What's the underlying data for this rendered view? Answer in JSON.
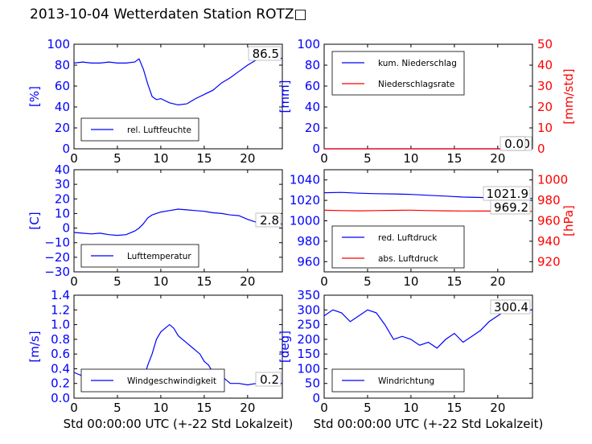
{
  "title": "2013-10-04 Wetterdaten Station ROTZ□",
  "colors": {
    "primary": "#0000ff",
    "secondary": "#ff0000",
    "axis": "#000000"
  },
  "chart_data": [
    {
      "type": "line",
      "ylabel": "[%]",
      "ylim": [
        0,
        100
      ],
      "yticks": [
        "0",
        "20",
        "40",
        "60",
        "80",
        "100"
      ],
      "xlim": [
        0,
        24
      ],
      "xticks": [
        "0",
        "5",
        "10",
        "15",
        "20"
      ],
      "xlabel": "",
      "value_label": "86.5",
      "legend": [
        "rel. Luftfeuchte"
      ],
      "series": [
        {
          "name": "rel. Luftfeuchte",
          "color": "#0000ff",
          "x": [
            0,
            1,
            2,
            3,
            4,
            5,
            6,
            7,
            7.5,
            8,
            8.5,
            9,
            9.5,
            10,
            11,
            12,
            13,
            14,
            15,
            16,
            17,
            18,
            19,
            20,
            21,
            22,
            23,
            24
          ],
          "y": [
            82,
            83,
            82,
            82,
            83,
            82,
            82,
            83,
            86,
            76,
            62,
            50,
            47,
            48,
            44,
            42,
            43,
            48,
            52,
            56,
            63,
            68,
            74,
            80,
            85,
            86,
            86.5,
            86.5
          ]
        }
      ]
    },
    {
      "type": "line",
      "ylabel": "[mm]",
      "ylabel2": "[mm/std]",
      "ylim": [
        0,
        100
      ],
      "ylim2": [
        0,
        50
      ],
      "yticks": [
        "0",
        "20",
        "40",
        "60",
        "80",
        "100"
      ],
      "yticks2": [
        "0",
        "10",
        "20",
        "30",
        "40",
        "50"
      ],
      "xlim": [
        0,
        24
      ],
      "xticks": [
        "0",
        "5",
        "10",
        "15",
        "20"
      ],
      "xlabel": "",
      "value_label": "0.0",
      "value_label2": "0.0",
      "legend": [
        "kum. Niederschlag",
        "Niederschlagsrate"
      ],
      "series": [
        {
          "name": "kum. Niederschlag",
          "color": "#0000ff",
          "axis": 1,
          "x": [
            0,
            24
          ],
          "y": [
            0,
            0
          ]
        },
        {
          "name": "Niederschlagsrate",
          "color": "#ff0000",
          "axis": 2,
          "x": [
            0,
            24
          ],
          "y": [
            0,
            0
          ]
        }
      ]
    },
    {
      "type": "line",
      "ylabel": "[C]",
      "ylim": [
        -30,
        40
      ],
      "yticks": [
        "−30",
        "−20",
        "−10",
        "0",
        "10",
        "20",
        "30",
        "40"
      ],
      "xlim": [
        0,
        24
      ],
      "xticks": [
        "0",
        "5",
        "10",
        "15",
        "20"
      ],
      "xlabel": "",
      "value_label": "2.8",
      "legend": [
        "Lufttemperatur"
      ],
      "series": [
        {
          "name": "Lufttemperatur",
          "color": "#0000ff",
          "x": [
            0,
            1,
            2,
            3,
            4,
            5,
            6,
            7,
            7.5,
            8,
            8.5,
            9,
            10,
            11,
            12,
            13,
            14,
            15,
            16,
            17,
            18,
            19,
            20,
            21,
            22,
            23,
            24
          ],
          "y": [
            -3,
            -3.5,
            -4,
            -3.5,
            -4.5,
            -5,
            -4.5,
            -2,
            0,
            3,
            7,
            9,
            11,
            12,
            13,
            12.5,
            12,
            11.5,
            10.5,
            10,
            9,
            8.5,
            6,
            4,
            3,
            2.8,
            2.8
          ]
        }
      ]
    },
    {
      "type": "line",
      "ylabel2": "[hPa]",
      "ylim": [
        950,
        1050
      ],
      "ylim2": [
        910,
        1010
      ],
      "yticks": [
        "960",
        "980",
        "1000",
        "1020",
        "1040"
      ],
      "yticks2": [
        "920",
        "940",
        "960",
        "980",
        "1000"
      ],
      "xlim": [
        0,
        24
      ],
      "xticks": [
        "0",
        "5",
        "10",
        "15",
        "20"
      ],
      "xlabel": "",
      "value_label": "1021.9",
      "value_label2": "969.2",
      "legend": [
        "red. Luftdruck",
        "abs. Luftdruck"
      ],
      "series": [
        {
          "name": "red. Luftdruck",
          "color": "#0000ff",
          "axis": 1,
          "x": [
            0,
            2,
            4,
            6,
            8,
            10,
            12,
            14,
            16,
            18,
            20,
            22,
            24
          ],
          "y": [
            1027.5,
            1027.8,
            1027.0,
            1026.5,
            1026.3,
            1025.8,
            1025.0,
            1024.2,
            1023.2,
            1022.8,
            1022.5,
            1022.2,
            1021.9
          ]
        },
        {
          "name": "abs. Luftdruck",
          "color": "#ff0000",
          "axis": 2,
          "x": [
            0,
            2,
            4,
            6,
            8,
            10,
            12,
            14,
            16,
            18,
            20,
            22,
            24
          ],
          "y": [
            970.3,
            970.0,
            969.8,
            970.0,
            970.2,
            970.4,
            970.0,
            969.8,
            969.6,
            969.5,
            969.5,
            969.3,
            969.2
          ]
        }
      ]
    },
    {
      "type": "line",
      "ylabel": "[m/s]",
      "ylim": [
        0,
        1.4
      ],
      "yticks": [
        "0.0",
        "0.2",
        "0.4",
        "0.6",
        "0.8",
        "1.0",
        "1.2",
        "1.4"
      ],
      "xlim": [
        0,
        24
      ],
      "xticks": [
        "0",
        "5",
        "10",
        "15",
        "20"
      ],
      "xlabel": "Std 00:00:00 UTC (+-22 Std Lokalzeit)",
      "value_label": "0.2",
      "legend": [
        "Windgeschwindigkeit"
      ],
      "series": [
        {
          "name": "Windgeschwindigkeit",
          "color": "#0000ff",
          "x": [
            0,
            1,
            2,
            3,
            4,
            5,
            6,
            7,
            8,
            8.5,
            9,
            9.5,
            10,
            10.5,
            11,
            11.5,
            12,
            12.5,
            13,
            13.5,
            14,
            14.5,
            15,
            15.5,
            16,
            17,
            18,
            19,
            20,
            21,
            22,
            23,
            24
          ],
          "y": [
            0.35,
            0.3,
            0.28,
            0.3,
            0.32,
            0.3,
            0.28,
            0.3,
            0.25,
            0.45,
            0.6,
            0.8,
            0.9,
            0.95,
            1.0,
            0.95,
            0.85,
            0.8,
            0.75,
            0.7,
            0.65,
            0.6,
            0.5,
            0.45,
            0.35,
            0.3,
            0.2,
            0.2,
            0.18,
            0.2,
            0.22,
            0.2,
            0.2
          ]
        }
      ]
    },
    {
      "type": "line",
      "ylabel": "[deg]",
      "ylim": [
        0,
        350
      ],
      "yticks": [
        "0",
        "50",
        "100",
        "150",
        "200",
        "250",
        "300",
        "350"
      ],
      "xlim": [
        0,
        24
      ],
      "xticks": [
        "0",
        "5",
        "10",
        "15",
        "20"
      ],
      "xlabel": "Std 00:00:00 UTC (+-22 Std Lokalzeit)",
      "value_label": "300.4",
      "legend": [
        "Windrichtung"
      ],
      "series": [
        {
          "name": "Windrichtung",
          "color": "#0000ff",
          "x": [
            0,
            1,
            2,
            3,
            4,
            5,
            6,
            7,
            8,
            9,
            10,
            11,
            12,
            13,
            14,
            15,
            16,
            17,
            18,
            19,
            20,
            21,
            22,
            23,
            24
          ],
          "y": [
            280,
            300,
            290,
            260,
            280,
            300,
            290,
            250,
            200,
            210,
            200,
            180,
            190,
            170,
            200,
            220,
            190,
            210,
            230,
            260,
            280,
            300,
            290,
            300,
            300
          ]
        }
      ]
    }
  ]
}
